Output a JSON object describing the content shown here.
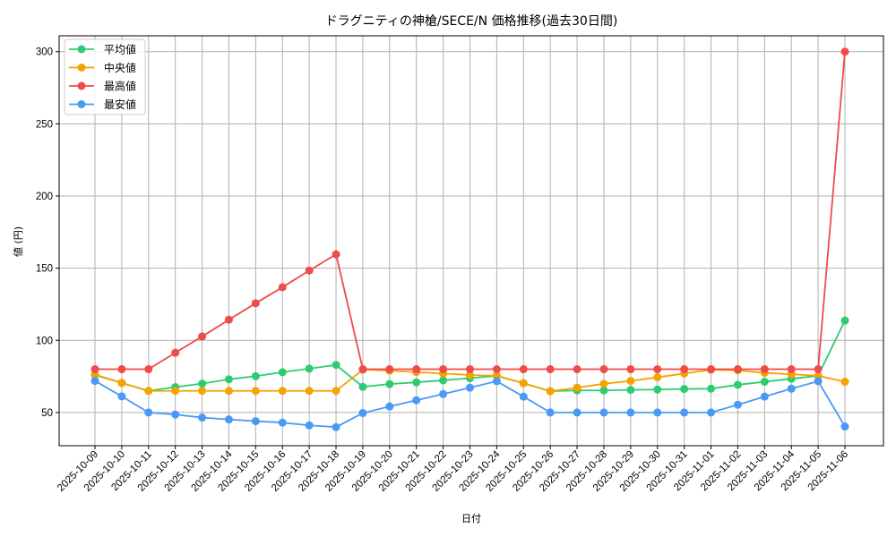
{
  "chart_data": {
    "type": "line",
    "title": "ドラグニティの神槍/SECE/N 価格推移(過去30日間)",
    "xlabel": "日付",
    "ylabel": "値 (円)",
    "ylim": [
      27,
      311
    ],
    "yticks": [
      50,
      100,
      150,
      200,
      250,
      300
    ],
    "grid": true,
    "legend_position": "upper left",
    "categories": [
      "2025-10-09",
      "2025-10-10",
      "2025-10-11",
      "2025-10-12",
      "2025-10-13",
      "2025-10-14",
      "2025-10-15",
      "2025-10-16",
      "2025-10-17",
      "2025-10-18",
      "2025-10-19",
      "2025-10-20",
      "2025-10-21",
      "2025-10-22",
      "2025-10-23",
      "2025-10-24",
      "2025-10-25",
      "2025-10-26",
      "2025-10-27",
      "2025-10-28",
      "2025-10-29",
      "2025-10-30",
      "2025-10-31",
      "2025-11-01",
      "2025-11-02",
      "2025-11-03",
      "2025-11-04",
      "2025-11-05",
      "2025-11-06"
    ],
    "series": [
      {
        "name": "平均値",
        "color": "#2ecc71",
        "values": [
          76,
          70.5,
          65,
          67.6,
          70,
          73,
          75.2,
          77.9,
          80.4,
          83,
          67.8,
          69.7,
          70.9,
          72.3,
          73.8,
          75.4,
          70.3,
          64.8,
          65.3,
          65.3,
          65.7,
          65.9,
          66.3,
          66.5,
          69.2,
          71.3,
          73.4,
          75.4,
          113.7
        ]
      },
      {
        "name": "中央値",
        "color": "#f5a300",
        "values": [
          76.3,
          70.5,
          65,
          65,
          65,
          65,
          65,
          65,
          65,
          65,
          79.7,
          79,
          78,
          77,
          76,
          75.4,
          70.3,
          64.7,
          67.2,
          69.9,
          71.9,
          74.4,
          77,
          79.6,
          79.2,
          77.5,
          76.5,
          75.4,
          71.3
        ]
      },
      {
        "name": "最高値",
        "color": "#f04a4a",
        "values": [
          80,
          80,
          80,
          91.4,
          102.7,
          114.3,
          125.7,
          136.8,
          148.4,
          159.6,
          80,
          80,
          80,
          80,
          80,
          80,
          80,
          80,
          80,
          80,
          80,
          80,
          80,
          80,
          80,
          80,
          80,
          80,
          300
        ]
      },
      {
        "name": "最安値",
        "color": "#4a9af5",
        "values": [
          71.9,
          61.2,
          50,
          48.6,
          46.5,
          45.2,
          44,
          43,
          41.1,
          39.9,
          49.6,
          54.2,
          58.5,
          62.8,
          67.2,
          71.7,
          61,
          50,
          50,
          50,
          50,
          50,
          50,
          50,
          55.4,
          61,
          66.5,
          71.7,
          40.3
        ]
      }
    ]
  }
}
